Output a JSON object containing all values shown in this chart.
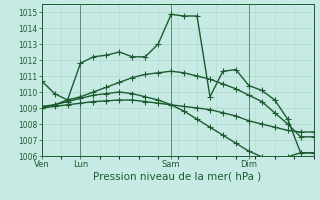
{
  "bg_color": "#c8eae4",
  "grid_color": "#b0d8cc",
  "line_color": "#1a5c30",
  "marker": "+",
  "markersize": 4,
  "linewidth": 1.0,
  "xlabel": "Pression niveau de la mer( hPa )",
  "xlabel_fontsize": 7.5,
  "ylim": [
    1006,
    1015.5
  ],
  "yticks": [
    1006,
    1007,
    1008,
    1009,
    1010,
    1011,
    1012,
    1013,
    1014,
    1015
  ],
  "ytick_fontsize": 5.5,
  "xtick_fontsize": 6.0,
  "day_labels": [
    "Ven",
    "Lun",
    "Sam",
    "Dim"
  ],
  "day_positions": [
    0,
    3,
    10,
    16
  ],
  "xlim": [
    0,
    21
  ],
  "series": [
    [
      1010.7,
      1009.9,
      1009.5,
      1011.8,
      1012.2,
      1012.3,
      1012.5,
      1012.2,
      1012.2,
      1013.0,
      1014.85,
      1014.75,
      1014.75,
      1009.7,
      1011.3,
      1011.4,
      1010.4,
      1010.1,
      1009.5,
      1008.3,
      1006.2,
      1006.2
    ],
    [
      1009.0,
      1009.2,
      1009.5,
      1009.7,
      1010.0,
      1010.3,
      1010.6,
      1010.9,
      1011.1,
      1011.2,
      1011.3,
      1011.2,
      1011.0,
      1010.8,
      1010.5,
      1010.2,
      1009.8,
      1009.4,
      1008.7,
      1008.0,
      1007.2,
      1007.2
    ],
    [
      1009.1,
      1009.2,
      1009.4,
      1009.6,
      1009.8,
      1009.9,
      1010.0,
      1009.9,
      1009.7,
      1009.5,
      1009.2,
      1008.8,
      1008.3,
      1007.8,
      1007.3,
      1006.8,
      1006.3,
      1005.95,
      1005.75,
      1005.95,
      1006.2,
      1006.2
    ],
    [
      1009.0,
      1009.1,
      1009.2,
      1009.3,
      1009.4,
      1009.45,
      1009.5,
      1009.5,
      1009.4,
      1009.3,
      1009.2,
      1009.1,
      1009.0,
      1008.9,
      1008.7,
      1008.5,
      1008.2,
      1008.0,
      1007.8,
      1007.6,
      1007.5,
      1007.5
    ]
  ],
  "n_points": 22
}
